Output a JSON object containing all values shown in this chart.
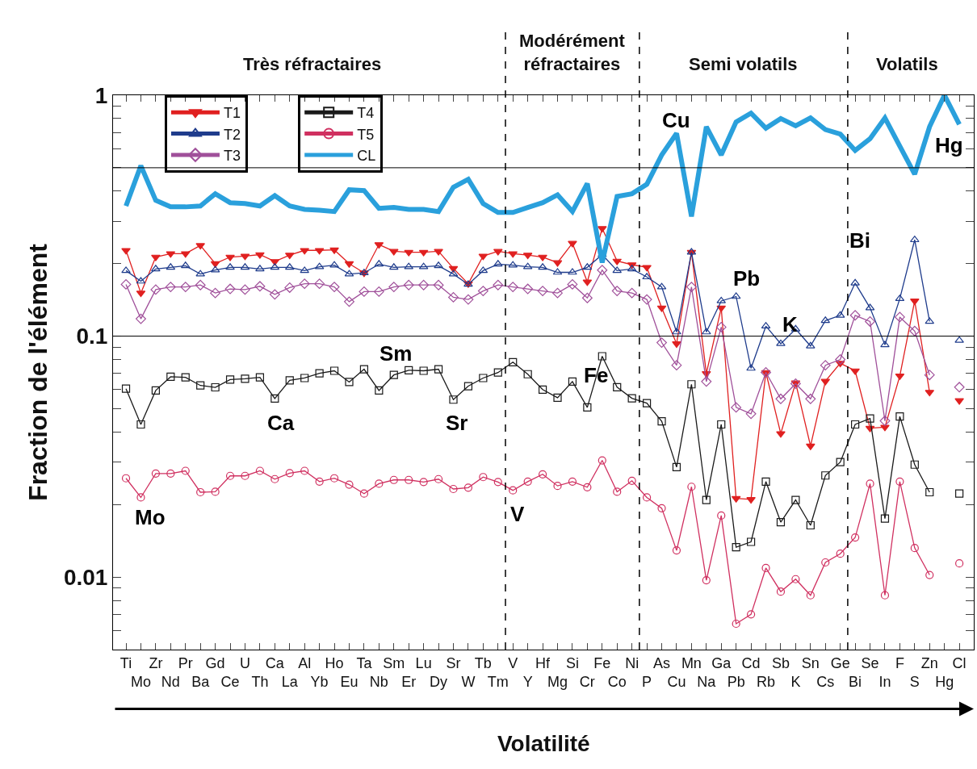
{
  "chart_data": {
    "type": "line",
    "xlabel": "Volatilité",
    "ylabel": "Fraction de l'élément",
    "categories": [
      "Ti",
      "Mo",
      "Zr",
      "Nd",
      "Pr",
      "Ba",
      "Gd",
      "Ce",
      "U",
      "Th",
      "Ca",
      "La",
      "Al",
      "Yb",
      "Ho",
      "Eu",
      "Ta",
      "Nb",
      "Sm",
      "Er",
      "Lu",
      "Dy",
      "Sr",
      "W",
      "Tb",
      "Tm",
      "V",
      "Y",
      "Hf",
      "Mg",
      "Si",
      "Cr",
      "Fe",
      "Co",
      "Ni",
      "P",
      "As",
      "Cu",
      "Mn",
      "Na",
      "Ga",
      "Pb",
      "Cd",
      "Rb",
      "Sb",
      "K",
      "Sn",
      "Cs",
      "Ge",
      "Bi",
      "Se",
      "In",
      "F",
      "S",
      "Zn",
      "Hg",
      "Cl"
    ],
    "log": "y",
    "ylim": [
      0.005,
      1
    ],
    "yticks": [
      {
        "value": 0.005,
        "label": null
      },
      {
        "value": 0.006,
        "label": null
      },
      {
        "value": 0.007,
        "label": null
      },
      {
        "value": 0.008,
        "label": null
      },
      {
        "value": 0.009,
        "label": null
      },
      0.01,
      {
        "value": 0.02,
        "label": null
      },
      {
        "value": 0.03,
        "label": null
      },
      {
        "value": 0.04,
        "label": null
      },
      {
        "value": 0.05,
        "label": null
      },
      {
        "value": 0.06,
        "label": null
      },
      {
        "value": 0.07,
        "label": null
      },
      {
        "value": 0.08,
        "label": null
      },
      {
        "value": 0.09,
        "label": null
      },
      0.1,
      {
        "value": 0.2,
        "label": null
      },
      {
        "value": 0.3,
        "label": null
      },
      {
        "value": 0.4,
        "label": null
      },
      {
        "value": 0.5,
        "label": null
      },
      {
        "value": 0.6,
        "label": null
      },
      {
        "value": 0.7,
        "label": null
      },
      {
        "value": 0.8,
        "label": null
      },
      {
        "value": 0.9,
        "label": null
      },
      1
    ],
    "legend": "top left",
    "series": [
      {
        "name": "T1",
        "color": "#e02020",
        "marker": "triangle-down",
        "line_style": "solid",
        "values": [
          0.227,
          0.151,
          0.213,
          0.22,
          0.22,
          0.238,
          0.2,
          0.213,
          0.215,
          0.218,
          0.204,
          0.217,
          0.227,
          0.227,
          0.228,
          0.2,
          0.183,
          0.24,
          0.225,
          0.223,
          0.223,
          0.225,
          0.191,
          0.165,
          0.215,
          0.225,
          0.22,
          0.217,
          0.213,
          0.202,
          0.243,
          0.168,
          0.28,
          0.205,
          0.198,
          0.193,
          0.131,
          0.093,
          0.223,
          0.07,
          0.131,
          0.0212,
          0.021,
          0.0707,
          0.0394,
          0.064,
          0.035,
          0.065,
          0.0772,
          0.0718,
          0.0415,
          0.0419,
          0.0684,
          0.14,
          0.0585,
          null,
          0.054
        ]
      },
      {
        "name": "T2",
        "color": "#1f3c8c",
        "marker": "triangle",
        "line_style": "solid",
        "values": [
          0.187,
          0.169,
          0.19,
          0.193,
          0.196,
          0.181,
          0.188,
          0.193,
          0.193,
          0.19,
          0.193,
          0.193,
          0.187,
          0.194,
          0.197,
          0.181,
          0.183,
          0.199,
          0.193,
          0.194,
          0.194,
          0.196,
          0.181,
          0.164,
          0.187,
          0.199,
          0.197,
          0.194,
          0.193,
          0.184,
          0.184,
          0.193,
          0.218,
          0.187,
          0.19,
          0.176,
          0.16,
          0.104,
          0.223,
          0.104,
          0.14,
          0.146,
          0.0735,
          0.11,
          0.093,
          0.107,
          0.091,
          0.116,
          0.122,
          0.166,
          0.131,
          0.092,
          0.143,
          0.251,
          0.115,
          null,
          0.096
        ]
      },
      {
        "name": "T3",
        "color": "#a0509a",
        "marker": "diamond",
        "line_style": "solid",
        "values": [
          0.164,
          0.118,
          0.156,
          0.16,
          0.16,
          0.163,
          0.151,
          0.157,
          0.156,
          0.161,
          0.149,
          0.159,
          0.165,
          0.165,
          0.16,
          0.139,
          0.153,
          0.153,
          0.16,
          0.163,
          0.163,
          0.163,
          0.145,
          0.142,
          0.154,
          0.163,
          0.16,
          0.157,
          0.154,
          0.151,
          0.164,
          0.144,
          0.188,
          0.154,
          0.151,
          0.142,
          0.094,
          0.0757,
          0.16,
          0.0648,
          0.109,
          0.0506,
          0.0476,
          0.0707,
          0.0549,
          0.0635,
          0.0549,
          0.0757,
          0.08,
          0.122,
          0.115,
          0.0445,
          0.12,
          0.105,
          0.069,
          null,
          0.0614
        ]
      },
      {
        "name": "T4",
        "color": "#1a1a1a",
        "marker": "square",
        "line_style": "solid",
        "values": [
          0.0605,
          0.043,
          0.0595,
          0.0678,
          0.0674,
          0.0624,
          0.0613,
          0.066,
          0.0665,
          0.0674,
          0.0551,
          0.0655,
          0.067,
          0.0701,
          0.0718,
          0.0645,
          0.0729,
          0.0595,
          0.069,
          0.0722,
          0.0718,
          0.0729,
          0.0545,
          0.062,
          0.067,
          0.0706,
          0.078,
          0.0695,
          0.06,
          0.0555,
          0.0648,
          0.0506,
          0.0825,
          0.0614,
          0.0552,
          0.0527,
          0.0443,
          0.0286,
          0.0631,
          0.0209,
          0.043,
          0.0133,
          0.014,
          0.0249,
          0.0169,
          0.0209,
          0.0164,
          0.0264,
          0.03,
          0.043,
          0.0455,
          0.0175,
          0.0464,
          0.0293,
          0.0225,
          null,
          0.0222
        ]
      },
      {
        "name": "T5",
        "color": "#d03060",
        "marker": "circle",
        "line_style": "solid",
        "values": [
          0.0257,
          0.0214,
          0.0269,
          0.0269,
          0.0276,
          0.0225,
          0.0226,
          0.0263,
          0.0263,
          0.0276,
          0.0255,
          0.027,
          0.0276,
          0.0249,
          0.0257,
          0.0242,
          0.0222,
          0.0244,
          0.0253,
          0.0253,
          0.0248,
          0.0255,
          0.0232,
          0.0235,
          0.026,
          0.0248,
          0.0229,
          0.0249,
          0.0267,
          0.0239,
          0.0249,
          0.0236,
          0.0305,
          0.0226,
          0.0251,
          0.0214,
          0.0193,
          0.0129,
          0.0237,
          0.0097,
          0.018,
          0.0064,
          0.007,
          0.0109,
          0.0087,
          0.0098,
          0.0084,
          0.0115,
          0.0125,
          0.0146,
          0.0244,
          0.0084,
          0.0249,
          0.0132,
          0.0102,
          null,
          0.0114
        ]
      },
      {
        "name": "CL",
        "color": "#2aa0dc",
        "marker": "none",
        "line_style": "solid",
        "values": [
          0.347,
          0.51,
          0.366,
          0.344,
          0.344,
          0.347,
          0.39,
          0.358,
          0.355,
          0.347,
          0.383,
          0.347,
          0.336,
          0.333,
          0.329,
          0.405,
          0.402,
          0.339,
          0.342,
          0.336,
          0.336,
          0.329,
          0.415,
          0.448,
          0.355,
          0.326,
          0.326,
          0.342,
          0.358,
          0.386,
          0.329,
          0.43,
          0.202,
          0.38,
          0.39,
          0.427,
          0.565,
          0.695,
          0.314,
          0.74,
          0.565,
          0.775,
          0.843,
          0.73,
          0.8,
          0.746,
          0.805,
          0.72,
          0.69,
          0.59,
          0.66,
          0.805,
          0.615,
          0.47,
          0.74,
          1.0,
          0.757
        ]
      }
    ],
    "ref_lines": [
      {
        "axis": "y",
        "value": 0.5,
        "color": "#000000",
        "line_style": "solid"
      },
      {
        "axis": "y",
        "value": 0.1,
        "color": "#000000",
        "line_style": "solid"
      }
    ],
    "annotations": [
      "Très réfractaires",
      "Modérément\nréfractaires",
      "Semi volatils",
      "Volatils",
      "Mo",
      "Ca",
      "Sm",
      "Sr",
      "Fe",
      "V",
      "Cu",
      "Pb",
      "K",
      "Bi",
      "Hg"
    ]
  }
}
